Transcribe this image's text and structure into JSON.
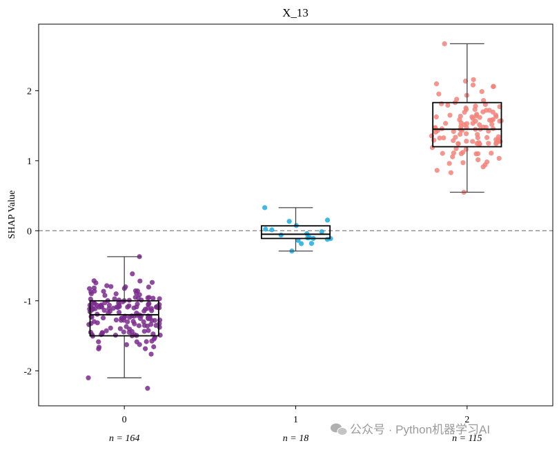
{
  "chart_data": {
    "type": "box",
    "title": "X_13",
    "xlabel": "",
    "ylabel": "SHAP Value",
    "ylim": [
      -2.5,
      2.95
    ],
    "xlim": [
      -0.5,
      2.5
    ],
    "yticks": [
      -2,
      -1,
      0,
      1,
      2
    ],
    "ytick_labels": [
      "-2",
      "-1",
      "0",
      "1",
      "2"
    ],
    "reference_line": {
      "y": 0,
      "style": "dashed"
    },
    "categories": [
      "0",
      "1",
      "2"
    ],
    "counts": [
      "n = 164",
      "n = 18",
      "n = 115"
    ],
    "series": [
      {
        "name": "0",
        "n": 164,
        "color": "#7B2D8E",
        "whisker_low": -2.1,
        "q1": -1.5,
        "median": -1.2,
        "q3": -1.0,
        "whisker_high": -0.37,
        "outliers": [
          -2.25
        ]
      },
      {
        "name": "1",
        "n": 18,
        "color": "#1AAEE0",
        "whisker_low": -0.29,
        "q1": -0.11,
        "median": -0.05,
        "q3": 0.07,
        "whisker_high": 0.33,
        "outliers": []
      },
      {
        "name": "2",
        "n": 115,
        "color": "#F2837A",
        "whisker_low": 0.55,
        "q1": 1.2,
        "median": 1.45,
        "q3": 1.83,
        "whisker_high": 2.67,
        "outliers": []
      }
    ]
  },
  "watermark": {
    "text": "公众号 · Python机器学习AI"
  }
}
